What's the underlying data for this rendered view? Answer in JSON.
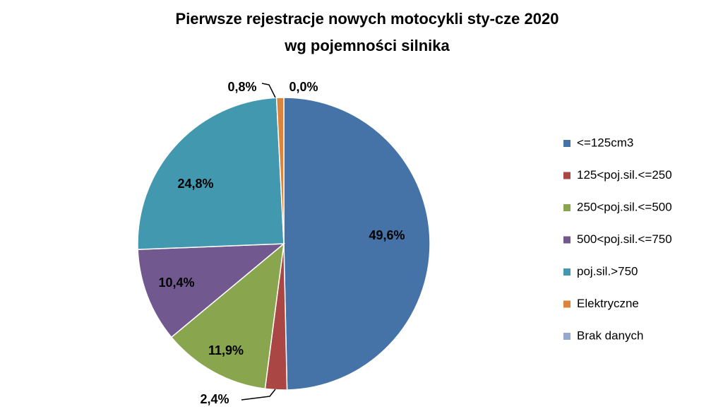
{
  "chart_data": {
    "type": "pie",
    "title": "Pierwsze rejestracje nowych motocykli sty-cze 2020",
    "subtitle": "wg pojemności silnika",
    "legend_position": "right",
    "slices": [
      {
        "name": "<=125cm3",
        "value": 49.6,
        "label": "49,6%",
        "color": "#4572A7"
      },
      {
        "name": "125<poj.sil.<=250",
        "value": 2.4,
        "label": "2,4%",
        "color": "#AA4643"
      },
      {
        "name": "250<poj.sil.<=500",
        "value": 11.9,
        "label": "11,9%",
        "color": "#89A54E"
      },
      {
        "name": "500<poj.sil.<=750",
        "value": 10.4,
        "label": "10,4%",
        "color": "#71588F"
      },
      {
        "name": "poj.sil.>750",
        "value": 24.8,
        "label": "24,8%",
        "color": "#4198AF"
      },
      {
        "name": "Elektryczne",
        "value": 0.8,
        "label": "0,8%",
        "color": "#DB843D"
      },
      {
        "name": "Brak danych",
        "value": 0.0,
        "label": "0,0%",
        "color": "#93A9CF"
      }
    ]
  }
}
